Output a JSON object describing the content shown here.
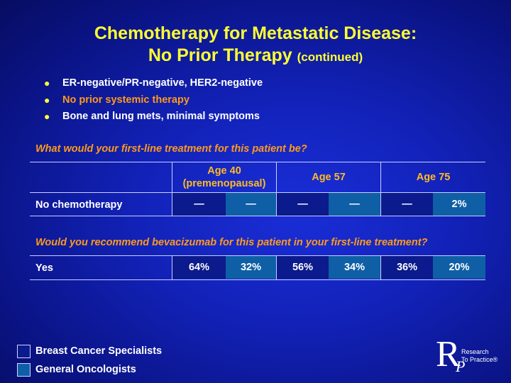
{
  "title": {
    "line1": "Chemotherapy for Metastatic Disease:",
    "line2": "No Prior Therapy",
    "line2_small": "(continued)"
  },
  "bullets": [
    {
      "text": "ER-negative/PR-negative, HER2-negative",
      "color": "#ffffff"
    },
    {
      "text": "No prior systemic therapy",
      "color": "#ff9a1a"
    },
    {
      "text": "Bone and lung mets, minimal symptoms",
      "color": "#ffffff"
    }
  ],
  "bullet_symbol": "●",
  "table1": {
    "question": "What would your first-line treatment for this patient be?",
    "headers": [
      "Age 40 (premenopausal)",
      "Age 57",
      "Age 75"
    ],
    "header_line1": "Age 40",
    "header_line2": "(premenopausal)",
    "row": {
      "label": "No chemotherapy",
      "values": [
        "—",
        "—",
        "—",
        "—",
        "—",
        "2%"
      ]
    }
  },
  "table2": {
    "question": "Would you recommend bevacizumab for this patient in your first-line treatment?",
    "row": {
      "label": "Yes",
      "values": [
        "64%",
        "32%",
        "56%",
        "34%",
        "36%",
        "20%"
      ]
    }
  },
  "legend": [
    {
      "label": "Breast Cancer Specialists",
      "color": "#0b1a8c"
    },
    {
      "label": "General Oncologists",
      "color": "#0f5fa6"
    }
  ],
  "logo": {
    "letter_r": "R",
    "letter_p": "P",
    "line1": "Research",
    "line2": "To Practice®"
  },
  "colors": {
    "title": "#ffff33",
    "question": "#ff9a1a",
    "header": "#ffbb22"
  }
}
